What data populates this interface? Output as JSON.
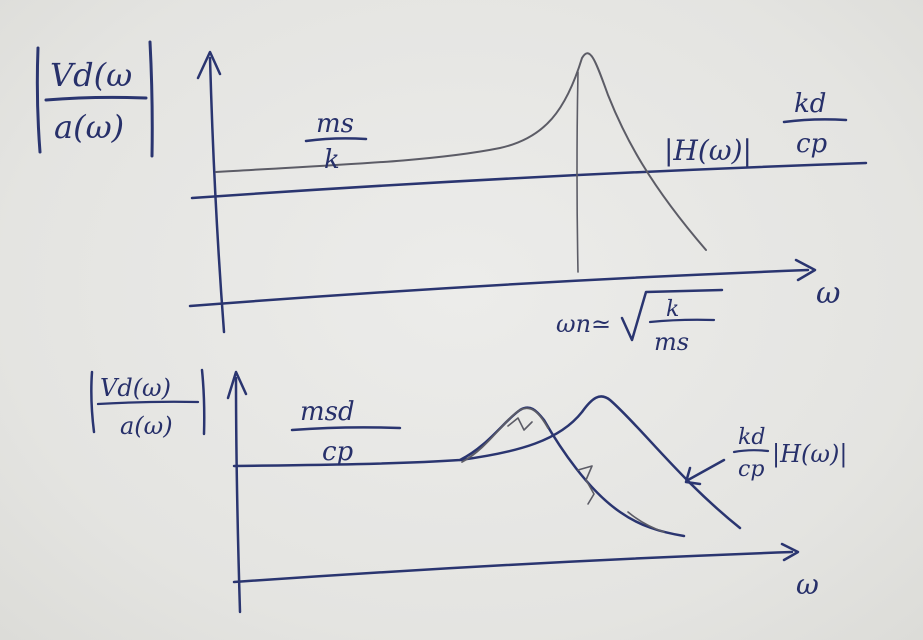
{
  "top_graph": {
    "y_label_numerator": "Vd(ω",
    "y_label_denominator": "a(ω)",
    "low_freq_numerator": "ms",
    "low_freq_denominator": "k",
    "transfer_label": "|H(ω)|",
    "gain_numerator": "kd",
    "gain_denominator": "cp",
    "x_axis_label": "ω",
    "resonance_lhs": "ωn≃",
    "resonance_numerator": "k",
    "resonance_denominator": "ms"
  },
  "bottom_graph": {
    "y_label_numerator": "Vd(ω)",
    "y_label_denominator": "a(ω)",
    "low_freq_numerator": "msd",
    "low_freq_denominator": "cp",
    "arrow_label_numerator": "kd",
    "arrow_label_denominator": "cp",
    "arrow_label_function": "|H(ω)|",
    "x_axis_label": "ω"
  },
  "colors": {
    "marker_blue": "#2a3570",
    "pencil_gray": "#5c5c66",
    "board": "#e6e6e3"
  }
}
